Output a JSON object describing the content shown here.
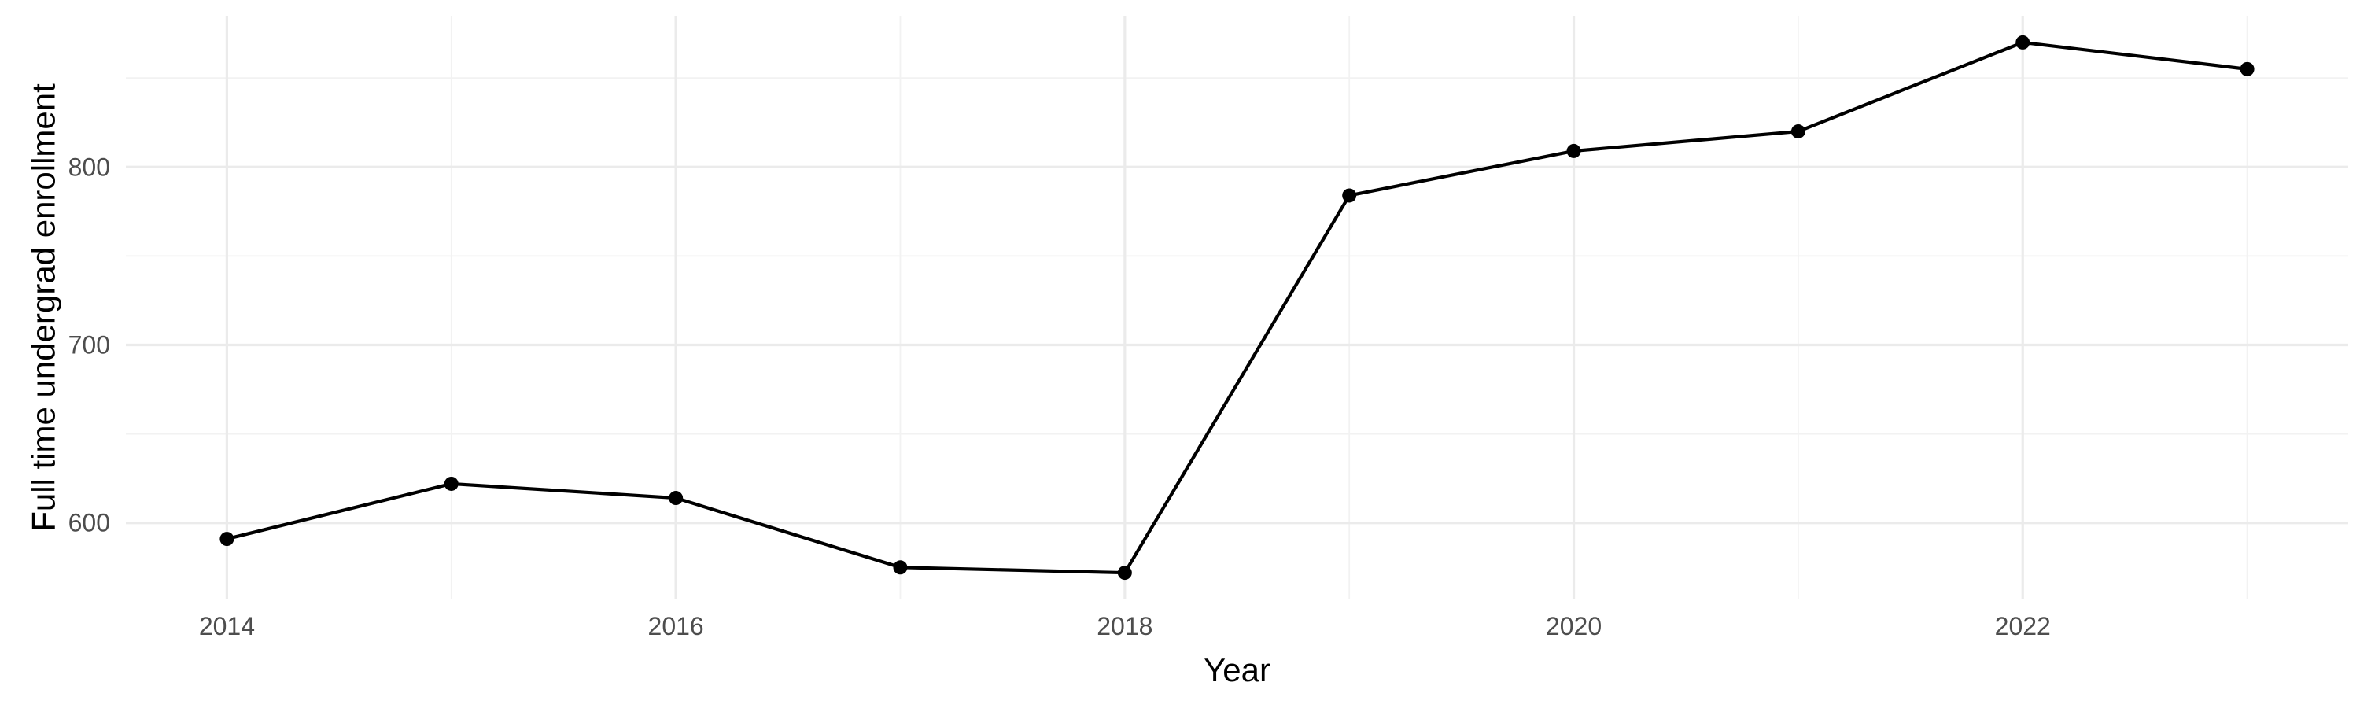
{
  "chart_data": {
    "type": "line",
    "title": "",
    "xlabel": "Year",
    "ylabel": "Full time undergrad enrollment",
    "x": [
      2014,
      2015,
      2016,
      2017,
      2018,
      2019,
      2020,
      2021,
      2022,
      2023
    ],
    "series": [
      {
        "values": [
          591,
          622,
          614,
          575,
          572,
          784,
          809,
          820,
          870,
          855
        ],
        "color": "#000000"
      }
    ],
    "x_ticks": [
      2014,
      2016,
      2018,
      2020,
      2022
    ],
    "x_tick_labels": [
      "2014",
      "2016",
      "2018",
      "2020",
      "2022"
    ],
    "y_ticks": [
      600,
      700,
      800
    ],
    "y_tick_labels": [
      "600",
      "700",
      "800"
    ],
    "xlim": [
      2013.55,
      2023.45
    ],
    "ylim": [
      557,
      885
    ],
    "grid": true,
    "legend": "none"
  }
}
